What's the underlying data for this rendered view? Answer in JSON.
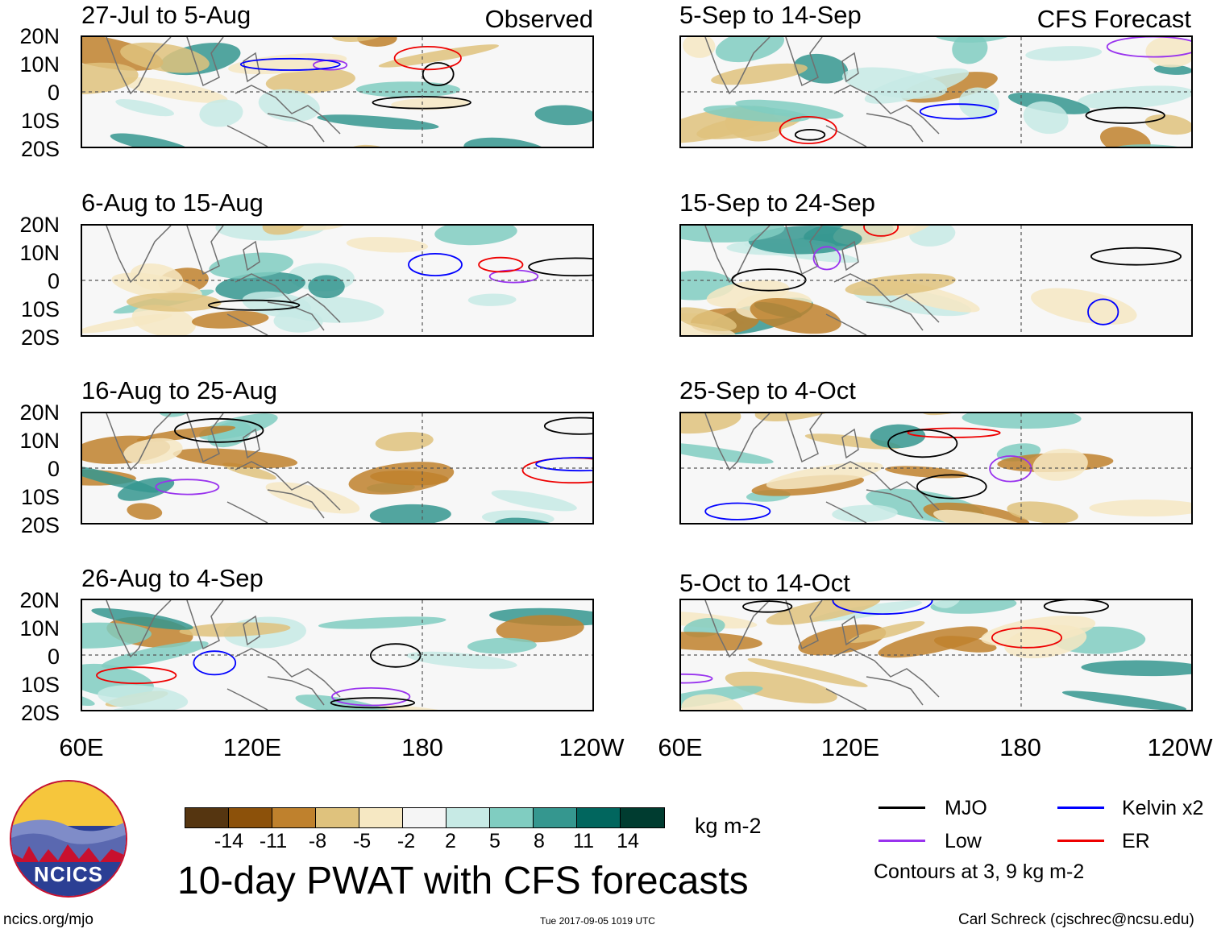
{
  "header": {
    "observed_label": "Observed",
    "forecast_label": "CFS Forecast"
  },
  "panels_left": [
    {
      "title": "27-Jul to 5-Aug"
    },
    {
      "title": "6-Aug to 15-Aug"
    },
    {
      "title": "16-Aug to 25-Aug"
    },
    {
      "title": "26-Aug to 4-Sep"
    }
  ],
  "panels_right": [
    {
      "title": "5-Sep to 14-Sep"
    },
    {
      "title": "15-Sep to 24-Sep"
    },
    {
      "title": "25-Sep to 4-Oct"
    },
    {
      "title": "5-Oct to 14-Oct"
    }
  ],
  "lat_labels": [
    "20N",
    "10N",
    "0",
    "10S",
    "20S"
  ],
  "lon_labels": [
    "60E",
    "120E",
    "180",
    "120W"
  ],
  "colorbar": {
    "colors": [
      "#553510",
      "#8c510a",
      "#bf812d",
      "#dfc27d",
      "#f6e8c3",
      "#f5f5f5",
      "#c7eae5",
      "#80cdc1",
      "#35978f",
      "#01665e",
      "#003c30"
    ],
    "labels": [
      "-14",
      "-11",
      "-8",
      "-5",
      "-2",
      "2",
      "5",
      "8",
      "11",
      "14"
    ],
    "unit": "kg m-2"
  },
  "title": "10-day PWAT with CFS forecasts",
  "logo_text": "NCICS",
  "legend": {
    "mjo": "MJO",
    "kelvin": "Kelvin x2",
    "low": "Low",
    "er": "ER",
    "mjo_color": "#000000",
    "kelvin_color": "#0000ff",
    "low_color": "#9933ee",
    "er_color": "#ee0000",
    "contours": "Contours at 3, 9 kg m-2"
  },
  "footer": {
    "url": "ncics.org/mjo",
    "timestamp": "Tue 2017-09-05 1019 UTC",
    "author": "Carl Schreck (cjschrec@ncsu.edu)"
  }
}
